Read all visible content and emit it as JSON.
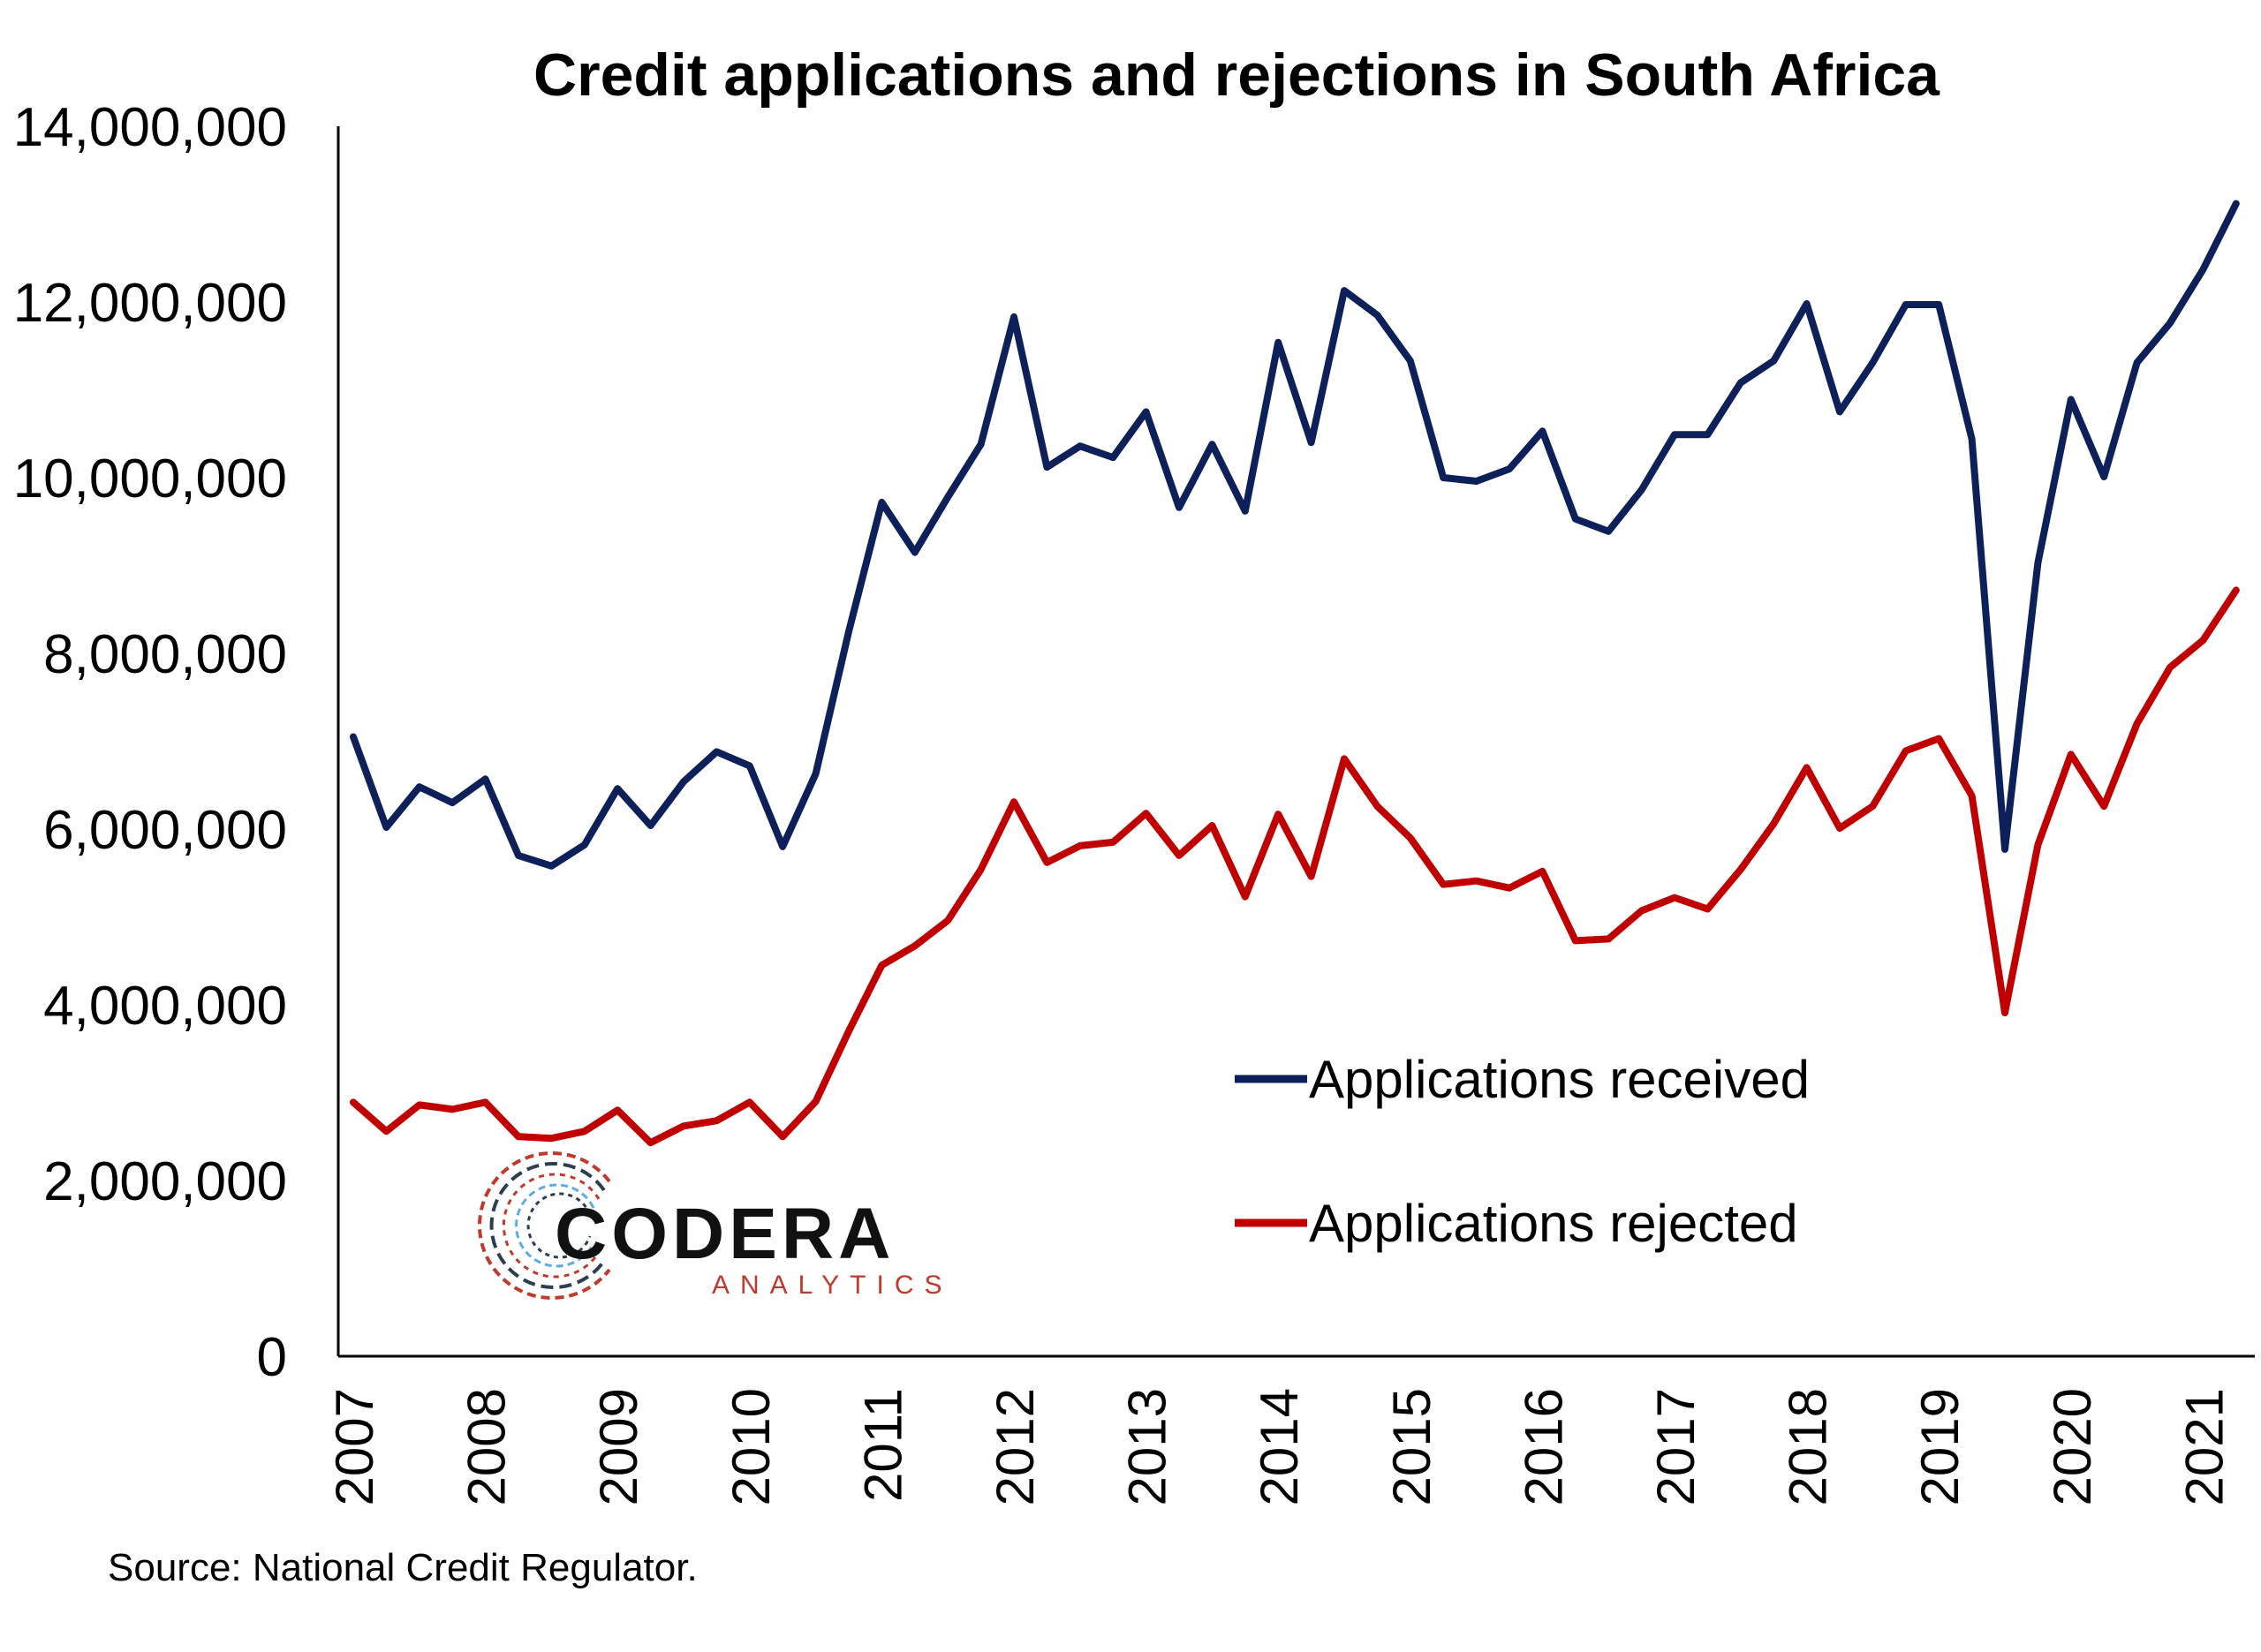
{
  "chart_data": {
    "type": "line",
    "title": "Credit applications and rejections in South Africa",
    "source": "Source: National Credit Regulator.",
    "xlabel": "",
    "ylabel": "",
    "ylim": [
      0,
      14000000
    ],
    "yticks": [
      0,
      2000000,
      4000000,
      6000000,
      8000000,
      10000000,
      12000000,
      14000000
    ],
    "ytick_labels": [
      "0",
      "2,000,000",
      "4,000,000",
      "6,000,000",
      "8,000,000",
      "10,000,000",
      "12,000,000",
      "14,000,000"
    ],
    "xticks": [
      "2007",
      "2008",
      "2009",
      "2010",
      "2011",
      "2012",
      "2013",
      "2014",
      "2015",
      "2016",
      "2017",
      "2018",
      "2019",
      "2020",
      "2021"
    ],
    "xlim": [
      2007,
      2021.5
    ],
    "grid": false,
    "legend_position": "center-right",
    "x": [
      2007.0,
      2007.25,
      2007.5,
      2007.75,
      2008.0,
      2008.25,
      2008.5,
      2008.75,
      2009.0,
      2009.25,
      2009.5,
      2009.75,
      2010.0,
      2010.25,
      2010.5,
      2010.75,
      2011.0,
      2011.25,
      2011.5,
      2011.75,
      2012.0,
      2012.25,
      2012.5,
      2012.75,
      2013.0,
      2013.25,
      2013.5,
      2013.75,
      2014.0,
      2014.25,
      2014.5,
      2014.75,
      2015.0,
      2015.25,
      2015.5,
      2015.75,
      2016.0,
      2016.25,
      2016.5,
      2016.75,
      2017.0,
      2017.25,
      2017.5,
      2017.75,
      2018.0,
      2018.25,
      2018.5,
      2018.75,
      2019.0,
      2019.25,
      2019.5,
      2019.75,
      2020.0,
      2020.25,
      2020.5,
      2020.75,
      2021.0,
      2021.25
    ],
    "series": [
      {
        "name": "Applications received",
        "color": "#0d2059",
        "values": [
          7050000,
          6020000,
          6480000,
          6300000,
          6570000,
          5700000,
          5580000,
          5820000,
          6460000,
          6040000,
          6540000,
          6880000,
          6720000,
          5800000,
          6630000,
          8250000,
          9720000,
          9150000,
          9780000,
          10380000,
          11830000,
          10120000,
          10360000,
          10230000,
          10750000,
          9660000,
          10380000,
          9620000,
          11540000,
          10400000,
          12130000,
          11850000,
          11330000,
          10000000,
          9960000,
          10100000,
          10530000,
          9530000,
          9390000,
          9860000,
          10490000,
          10490000,
          11080000,
          11330000,
          11980000,
          10750000,
          11310000,
          11970000,
          11970000,
          10440000,
          5770000,
          9030000,
          10890000,
          10010000,
          11310000,
          11760000,
          12370000,
          13120000
        ]
      },
      {
        "name": "Applications rejected",
        "color": "#c00000",
        "values": [
          2890000,
          2560000,
          2860000,
          2810000,
          2890000,
          2500000,
          2480000,
          2560000,
          2800000,
          2430000,
          2620000,
          2680000,
          2890000,
          2500000,
          2900000,
          3700000,
          4450000,
          4670000,
          4960000,
          5540000,
          6310000,
          5620000,
          5810000,
          5850000,
          6180000,
          5700000,
          6040000,
          5230000,
          6170000,
          5460000,
          6800000,
          6260000,
          5900000,
          5370000,
          5410000,
          5330000,
          5520000,
          4730000,
          4750000,
          5070000,
          5220000,
          5090000,
          5540000,
          6060000,
          6700000,
          6010000,
          6260000,
          6890000,
          7030000,
          6380000,
          3910000,
          5820000,
          6850000,
          6260000,
          7200000,
          7840000,
          8150000,
          8720000
        ]
      }
    ]
  },
  "logo": {
    "name": "CODERA",
    "tagline": "ANALYTICS"
  }
}
